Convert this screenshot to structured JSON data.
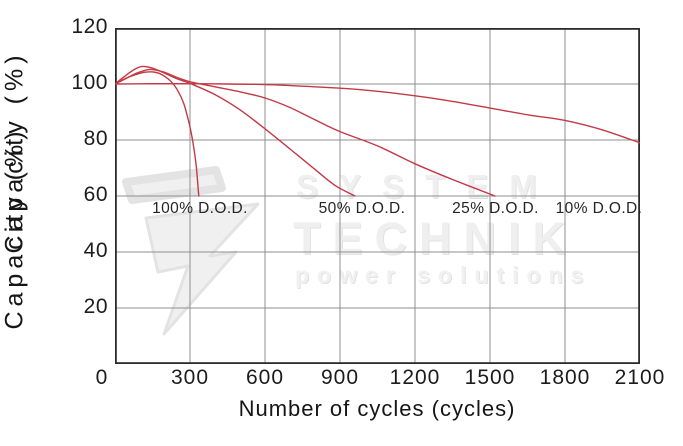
{
  "watermark": {
    "brand_top": "SYSTEM",
    "brand_bottom": "TECHNIK",
    "tagline": "power solutions"
  },
  "chart_data": {
    "type": "line",
    "title": "",
    "xlabel": "Number of cycles (cycles)",
    "ylabel": "Capacity (%)",
    "xlim": [
      0,
      2100
    ],
    "ylim": [
      0,
      120
    ],
    "xticks": [
      0,
      300,
      600,
      900,
      1200,
      1500,
      1800,
      2100
    ],
    "yticks": [
      120,
      100,
      80,
      60,
      40,
      20
    ],
    "grid": true,
    "legend_position": "none",
    "line_color": "#c23a46",
    "grid_color": "#8f8f8f",
    "frame_color": "#2b2b2b",
    "series": [
      {
        "name": "100% D.O.D.",
        "points": [
          [
            0,
            100
          ],
          [
            40,
            101.9
          ],
          [
            80,
            103.3
          ],
          [
            120,
            104.2
          ],
          [
            155,
            104.3
          ],
          [
            190,
            103.2
          ],
          [
            225,
            100.8
          ],
          [
            250,
            97.8
          ],
          [
            275,
            93
          ],
          [
            295,
            86.5
          ],
          [
            312,
            79
          ],
          [
            325,
            70.5
          ],
          [
            335,
            60
          ]
        ]
      },
      {
        "name": "50% D.O.D.",
        "points": [
          [
            0,
            100
          ],
          [
            35,
            102.5
          ],
          [
            70,
            104.8
          ],
          [
            105,
            106.2
          ],
          [
            145,
            105.8
          ],
          [
            195,
            104
          ],
          [
            250,
            101.8
          ],
          [
            300,
            100.2
          ],
          [
            400,
            96.2
          ],
          [
            500,
            90.8
          ],
          [
            600,
            84
          ],
          [
            700,
            76.8
          ],
          [
            800,
            69.5
          ],
          [
            880,
            63.8
          ],
          [
            960,
            60
          ]
        ]
      },
      {
        "name": "25% D.O.D.",
        "points": [
          [
            0,
            100
          ],
          [
            45,
            102
          ],
          [
            90,
            104
          ],
          [
            140,
            105.2
          ],
          [
            190,
            104.4
          ],
          [
            250,
            102.3
          ],
          [
            300,
            100.8
          ],
          [
            400,
            99
          ],
          [
            500,
            97.2
          ],
          [
            600,
            95
          ],
          [
            700,
            91.6
          ],
          [
            800,
            87.2
          ],
          [
            900,
            83
          ],
          [
            1050,
            77.9
          ],
          [
            1200,
            71.5
          ],
          [
            1350,
            65.9
          ],
          [
            1520,
            60
          ]
        ]
      },
      {
        "name": "10% D.O.D.",
        "points": [
          [
            0,
            100
          ],
          [
            150,
            100.1
          ],
          [
            300,
            100.1
          ],
          [
            450,
            100
          ],
          [
            600,
            99.8
          ],
          [
            750,
            99.2
          ],
          [
            900,
            98.5
          ],
          [
            1050,
            97.4
          ],
          [
            1200,
            95.8
          ],
          [
            1350,
            93.8
          ],
          [
            1500,
            91.4
          ],
          [
            1650,
            89
          ],
          [
            1800,
            87
          ],
          [
            1950,
            83.6
          ],
          [
            2100,
            79
          ]
        ]
      }
    ],
    "annotations": [
      {
        "text": "100% D.O.D.",
        "x": 340,
        "y": 55.4
      },
      {
        "text": "50% D.O.D.",
        "x": 988,
        "y": 55.4
      },
      {
        "text": "25% D.O.D.",
        "x": 1522,
        "y": 55.4
      },
      {
        "text": "10% D.O.D.",
        "x": 1936,
        "y": 55.4
      }
    ]
  }
}
